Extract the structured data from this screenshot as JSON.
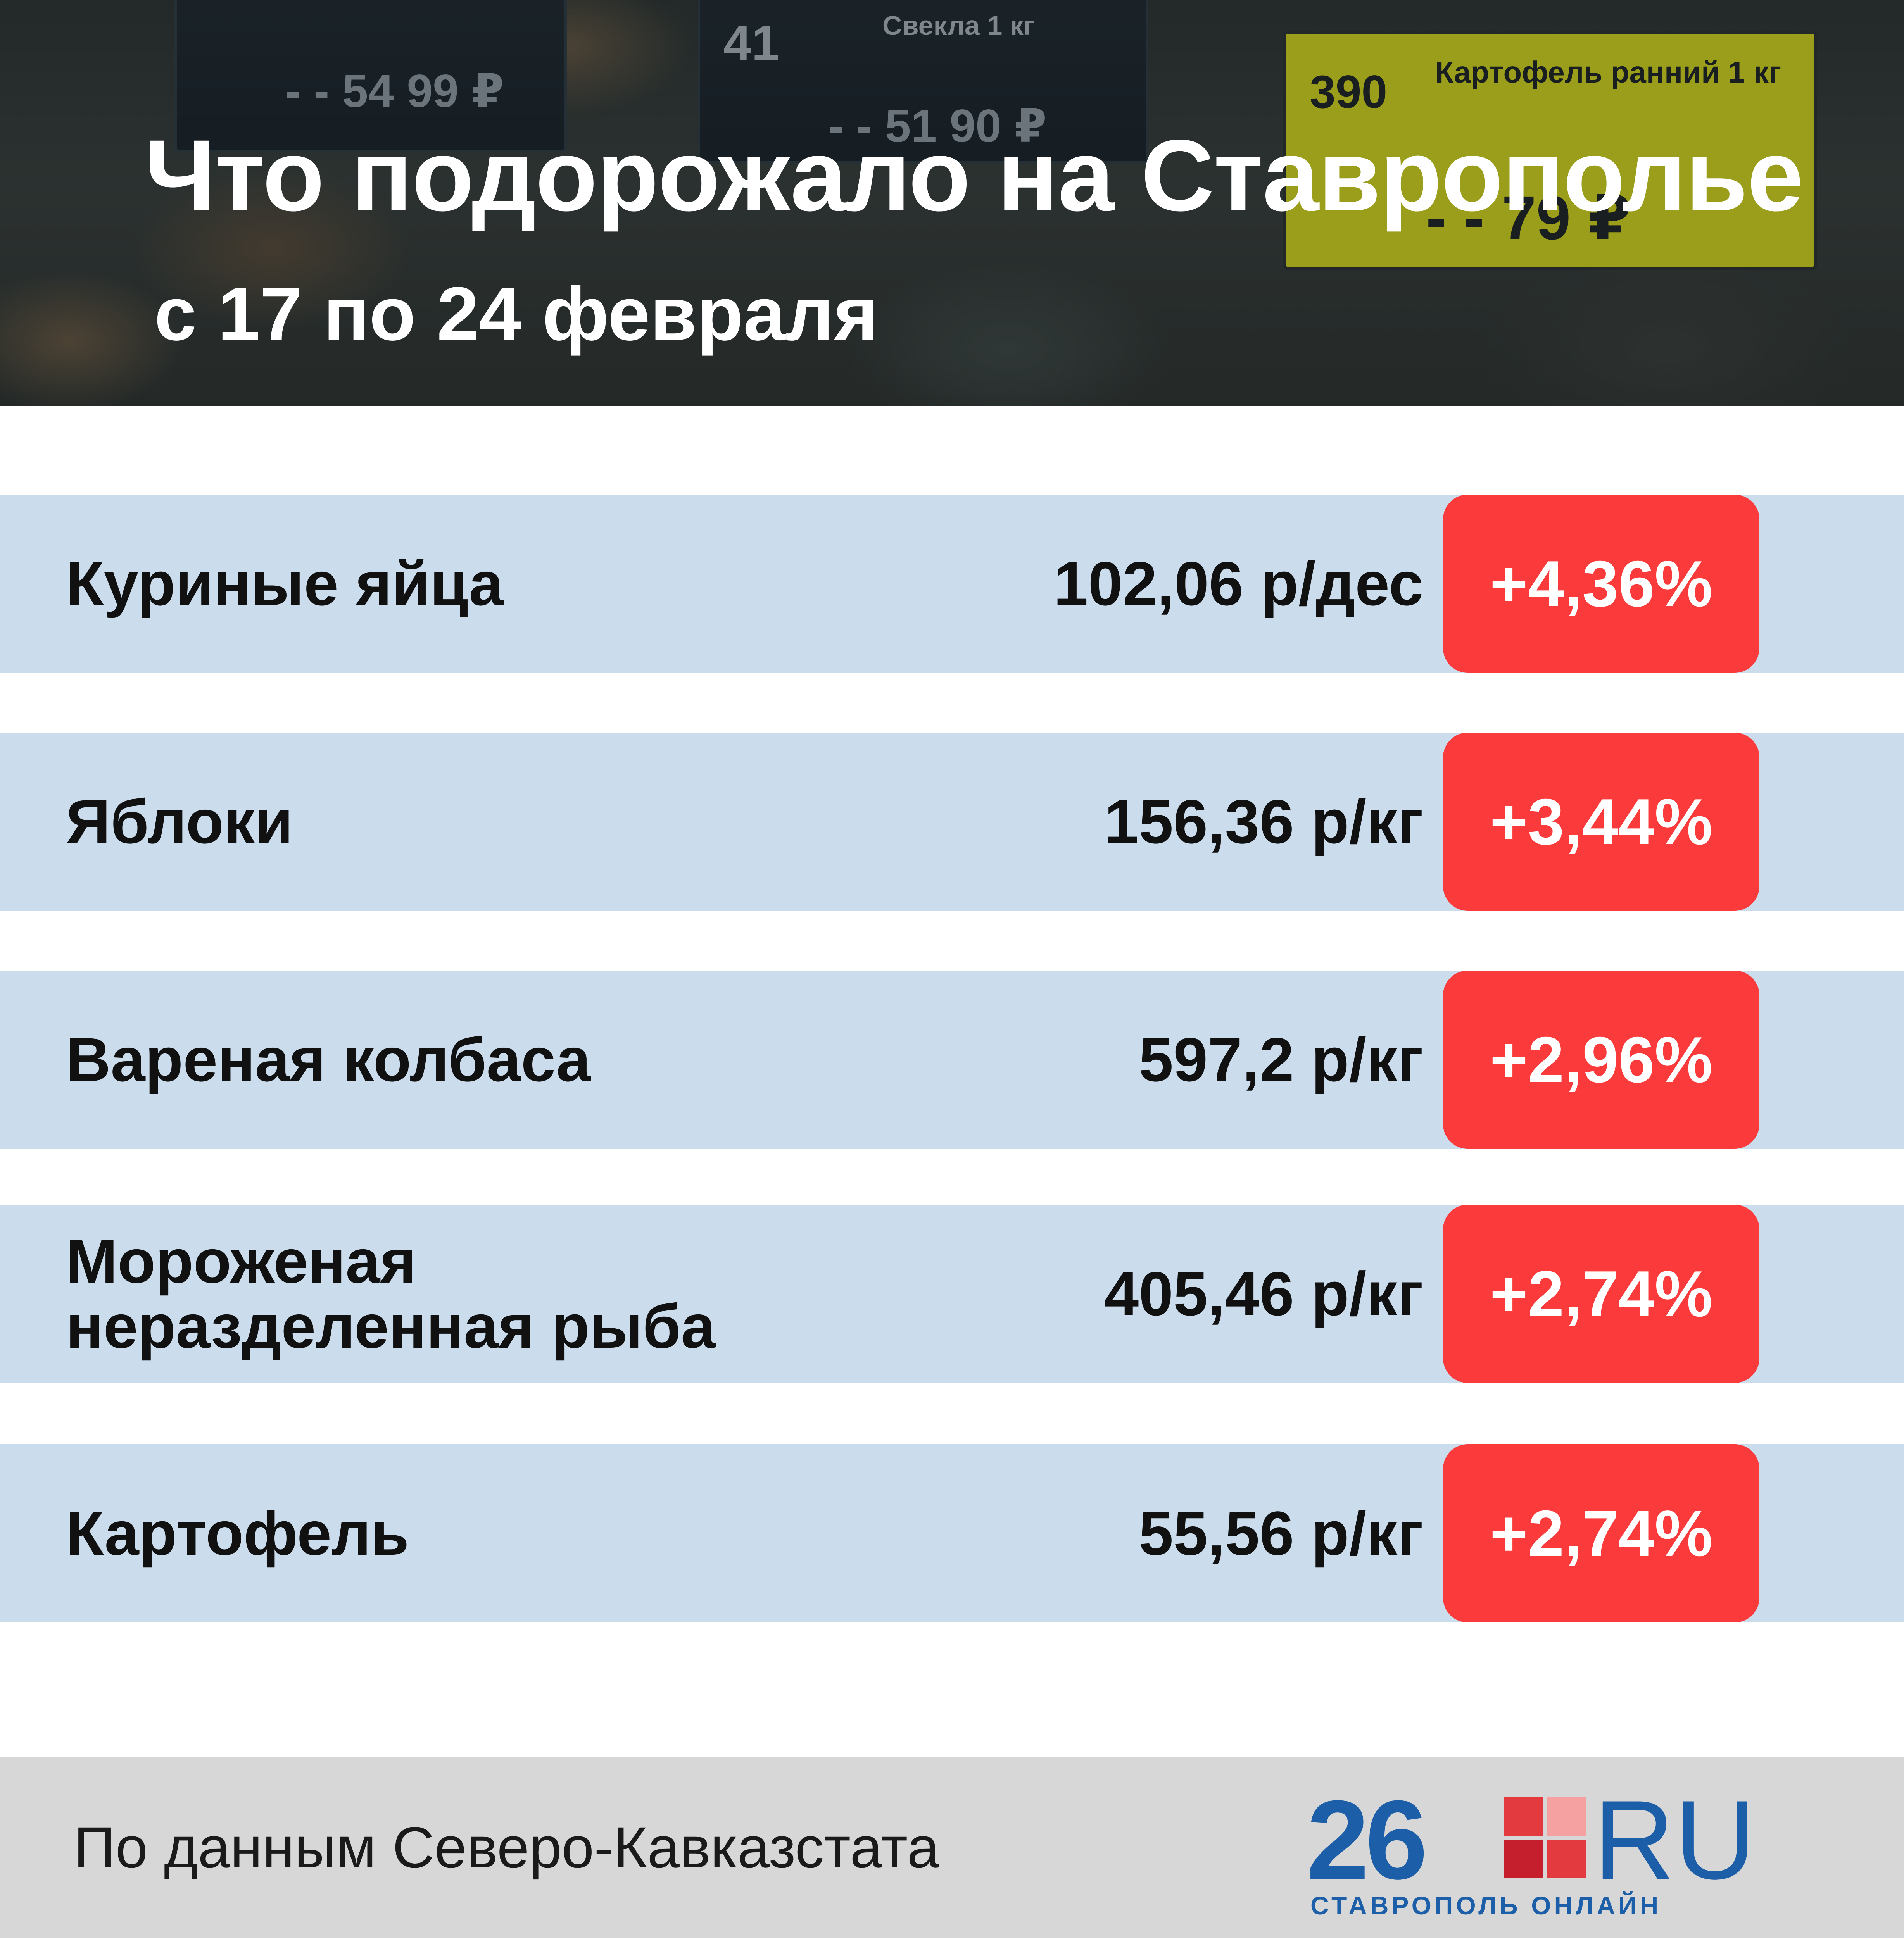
{
  "header": {
    "title": "Что подорожало на Ставрополье",
    "subtitle": "с 17 по 24 февраля",
    "photo_tags": [
      {
        "number": "41",
        "label": "Свекла 1 кг",
        "price": "- - 51 90 ₽"
      },
      {
        "number": "390",
        "label": "Картофель ранний 1 кг",
        "price": "- - 79 ₽"
      },
      {
        "number": "",
        "label": "",
        "price": "- - 54 99 ₽"
      }
    ]
  },
  "rows": [
    {
      "name": "Куриные яйца",
      "price": "102,06 р/дес",
      "change": "+4,36%"
    },
    {
      "name": "Яблоки",
      "price": "156,36 р/кг",
      "change": "+3,44%"
    },
    {
      "name": "Вареная колбаса",
      "price": "597,2 р/кг",
      "change": "+2,96%"
    },
    {
      "name": "Мороженая\nнеразделенная рыба",
      "price": "405,46 р/кг",
      "change": "+2,74%"
    },
    {
      "name": "Картофель",
      "price": "55,56 р/кг",
      "change": "+2,74%"
    }
  ],
  "footer": {
    "source": "По данным Северо-Кавказстата",
    "logo": {
      "number": "26",
      "domain": "RU",
      "tagline": "СТАВРОПОЛЬ ОНЛАЙН"
    }
  },
  "colors": {
    "row_background": "#cbdcec",
    "badge": "#fb3b3b",
    "logo_blue": "#1c5fa8",
    "footer_background": "#d7d7d7"
  }
}
